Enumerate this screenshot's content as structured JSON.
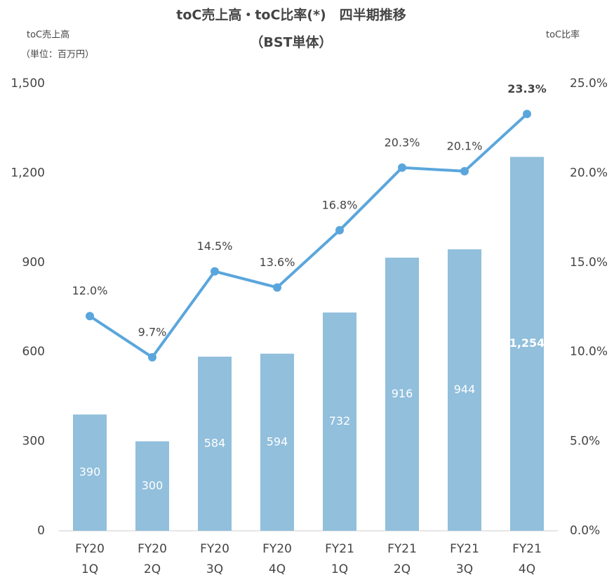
{
  "chart_data": {
    "type": "bar+line",
    "title": "toC売上高・toC比率(*)　四半期推移",
    "subtitle": "（BST単体）",
    "y_label": "toC売上高",
    "y_unit": "（単位：百万円）",
    "y2_label": "toC比率",
    "categories": [
      "FY20 1Q",
      "FY20 2Q",
      "FY20 3Q",
      "FY20 4Q",
      "FY21 1Q",
      "FY21 2Q",
      "FY21 3Q",
      "FY21 4Q"
    ],
    "series": [
      {
        "name": "toC売上高",
        "type": "bar",
        "color": "#91bfdc",
        "values": [
          390,
          300,
          584,
          594,
          732,
          916,
          944,
          1254
        ],
        "value_labels": [
          "390",
          "300",
          "584",
          "594",
          "732",
          "916",
          "944",
          "1,254"
        ]
      },
      {
        "name": "toC比率",
        "type": "line",
        "axis": "y2",
        "color": "#5aa6dc",
        "values": [
          12.0,
          9.7,
          14.5,
          13.6,
          16.8,
          20.3,
          20.1,
          23.3
        ],
        "value_labels": [
          "12.0%",
          "9.7%",
          "14.5%",
          "13.6%",
          "16.8%",
          "20.3%",
          "20.1%",
          "23.3%"
        ]
      }
    ],
    "ylim": [
      0,
      1500
    ],
    "yticks": [
      0,
      300,
      600,
      900,
      {
        "value": 1200,
        "label": "1,200"
      },
      {
        "value": 1500,
        "label": "1,500"
      }
    ],
    "y2lim": [
      0,
      25
    ],
    "y2ticks": [
      {
        "value": 0,
        "label": "0.0%"
      },
      {
        "value": 5,
        "label": "5.0%"
      },
      {
        "value": 10,
        "label": "10.0%"
      },
      {
        "value": 15,
        "label": "15.0%"
      },
      {
        "value": 20,
        "label": "20.0%"
      },
      {
        "value": 25,
        "label": "25.0%"
      }
    ],
    "grid": false
  }
}
